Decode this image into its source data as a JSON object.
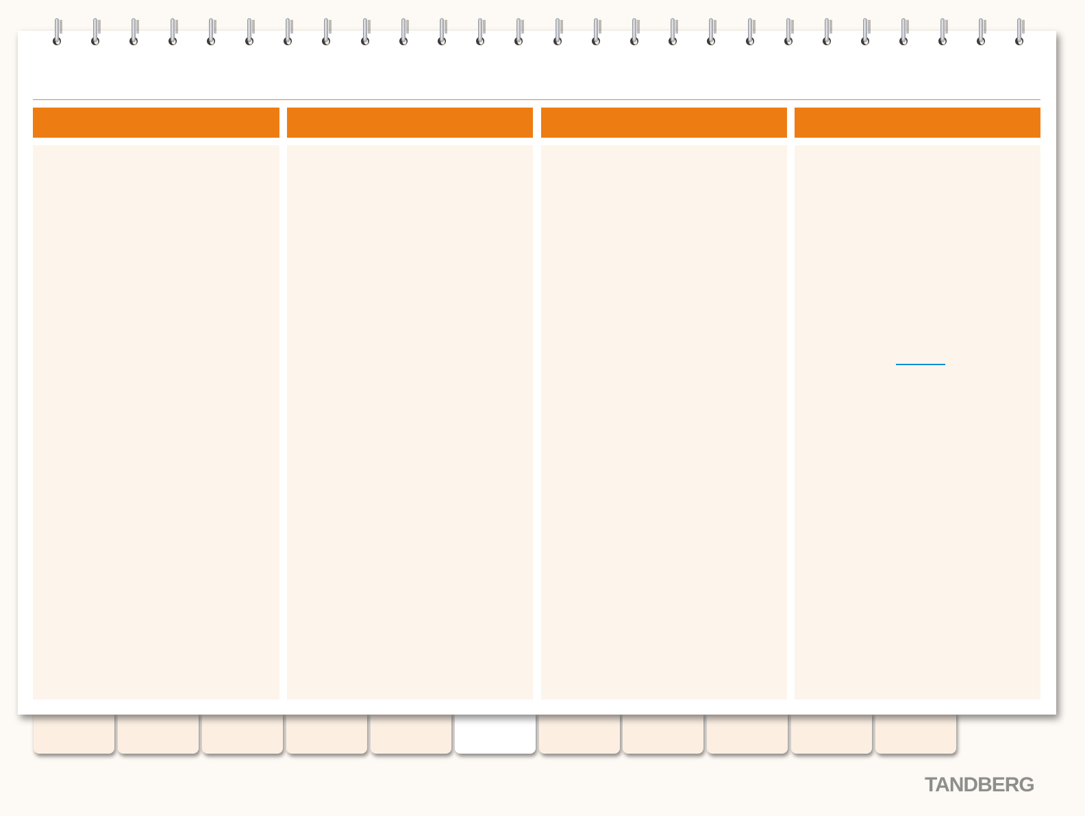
{
  "brand": {
    "logo_text": "TANDBERG",
    "accent_color": "#ed7d13",
    "panel_color": "#fdf4eb",
    "link_color": "#0a8ad6"
  },
  "columns": [
    {
      "header": ""
    },
    {
      "header": ""
    },
    {
      "header": ""
    },
    {
      "header": ""
    }
  ],
  "tabs": [
    {
      "label": ""
    },
    {
      "label": ""
    },
    {
      "label": ""
    },
    {
      "label": ""
    },
    {
      "label": ""
    },
    {
      "label": "",
      "active": true
    },
    {
      "label": ""
    },
    {
      "label": ""
    },
    {
      "label": ""
    },
    {
      "label": ""
    },
    {
      "label": ""
    }
  ],
  "binding": {
    "icon": "spiral-ring-icon",
    "ring_count": 26
  }
}
